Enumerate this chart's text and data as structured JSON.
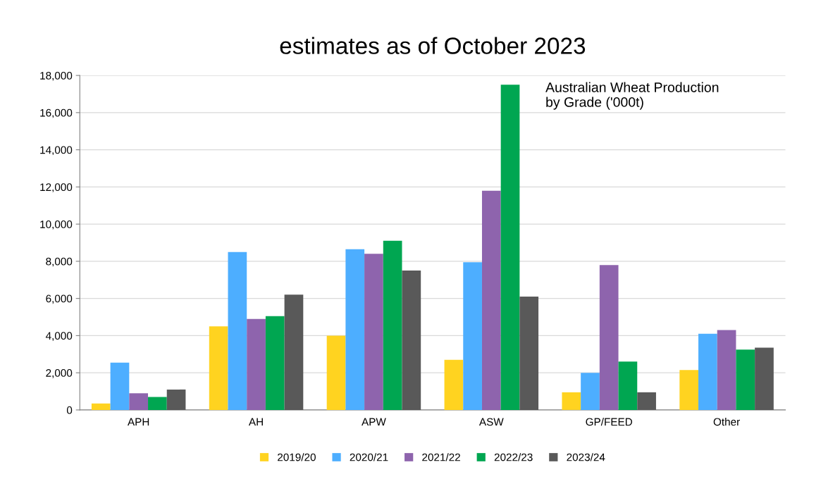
{
  "chart_data": {
    "type": "bar",
    "title": "estimates as of October 2023",
    "annotations": [
      "Australian Wheat Production\nby Grade ('000t)"
    ],
    "categories": [
      "APH",
      "AH",
      "APW",
      "ASW",
      "GP/FEED",
      "Other"
    ],
    "series": [
      {
        "name": "2019/20",
        "color": "#ffd320",
        "values": [
          350,
          4500,
          4000,
          2700,
          950,
          2150
        ]
      },
      {
        "name": "2020/21",
        "color": "#4daeff",
        "values": [
          2550,
          8500,
          8650,
          7950,
          2000,
          4100
        ]
      },
      {
        "name": "2021/22",
        "color": "#8e64ad",
        "values": [
          900,
          4900,
          8400,
          11800,
          7800,
          4300
        ]
      },
      {
        "name": "2022/23",
        "color": "#00a651",
        "values": [
          700,
          5050,
          9100,
          17500,
          2600,
          3250
        ]
      },
      {
        "name": "2023/24",
        "color": "#595959",
        "values": [
          1100,
          6200,
          7500,
          6100,
          950,
          3350
        ]
      }
    ],
    "ylim": [
      0,
      18000
    ],
    "yticks": [
      {
        "value": 0,
        "label": "0"
      },
      {
        "value": 2000,
        "label": "2,000"
      },
      {
        "value": 4000,
        "label": "4,000"
      },
      {
        "value": 6000,
        "label": "6,000"
      },
      {
        "value": 8000,
        "label": "8,000"
      },
      {
        "value": 10000,
        "label": "10,000"
      },
      {
        "value": 12000,
        "label": "12,000"
      },
      {
        "value": 14000,
        "label": "14,000"
      },
      {
        "value": 16000,
        "label": "16,000"
      },
      {
        "value": 18000,
        "label": "18,000"
      }
    ],
    "grid": "y",
    "legend": "bottom"
  }
}
